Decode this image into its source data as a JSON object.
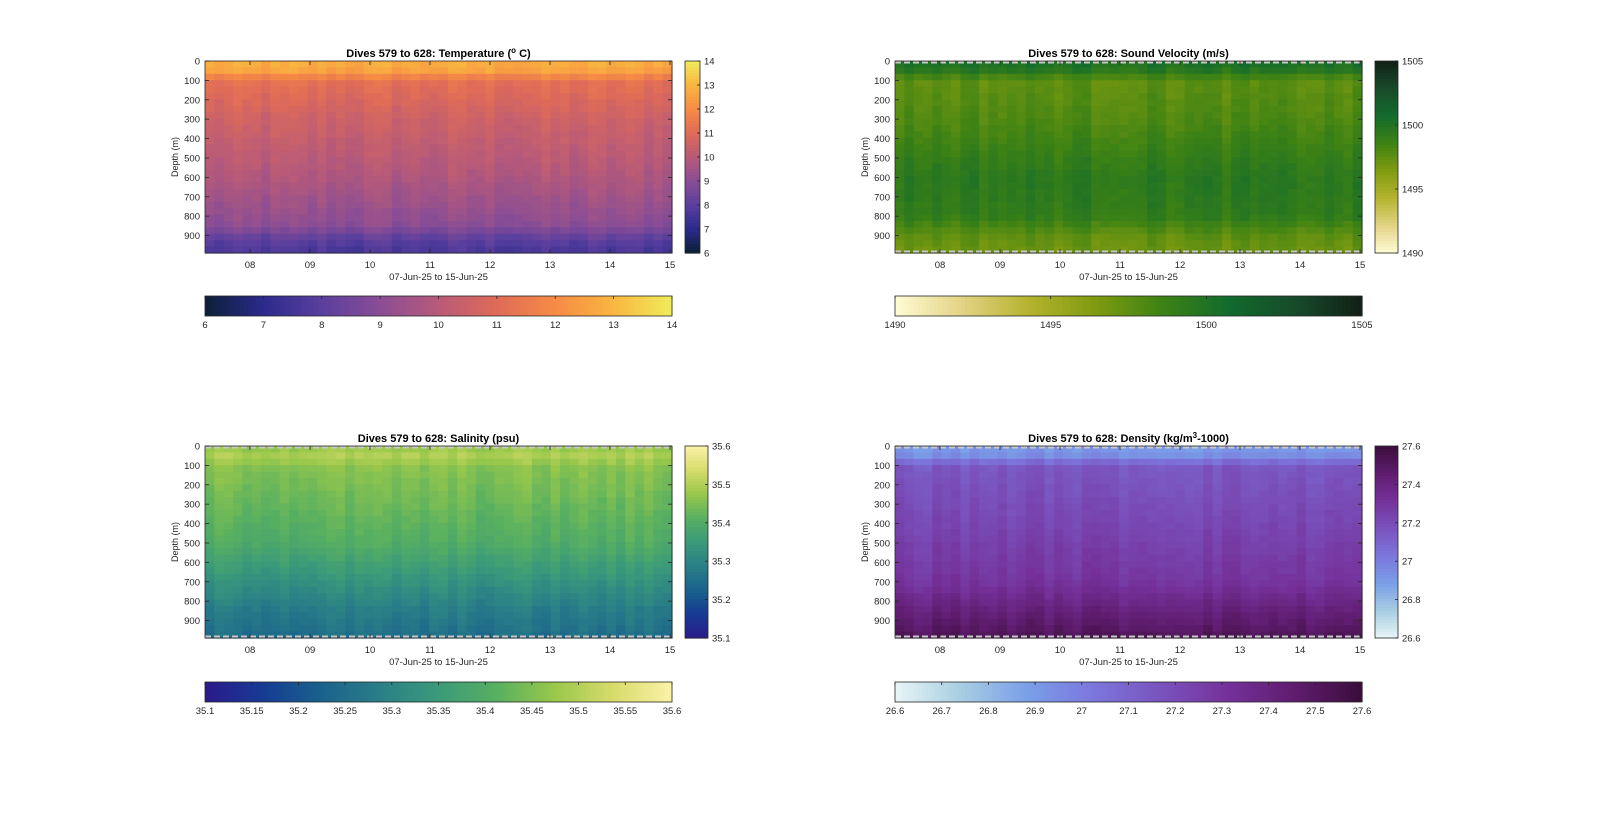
{
  "colormaps": {
    "thermal": [
      "#0b1f35",
      "#2b2a8c",
      "#5a3f9e",
      "#8a4d95",
      "#b85a78",
      "#df6b58",
      "#f68b45",
      "#f9b640",
      "#f0ec5b"
    ],
    "speed": [
      "#fffbd4",
      "#e3d385",
      "#b5b32f",
      "#7f9b10",
      "#3d8214",
      "#126b2d",
      "#174a2a",
      "#122016"
    ],
    "haline": [
      "#2a1a8a",
      "#173b94",
      "#19628c",
      "#2a7f87",
      "#3b9a7a",
      "#58b060",
      "#99c84b",
      "#d8dc6b",
      "#fbf2a8"
    ],
    "dense": [
      "#e8f5f7",
      "#a6cde2",
      "#7a9ee8",
      "#7c76dc",
      "#7a52bd",
      "#75319a",
      "#5f1c6e",
      "#3a0d3b"
    ]
  },
  "chart_data": [
    {
      "type": "heatmap",
      "title_parts": [
        "Dives 579 to 628: Temperature (",
        "o",
        " C)"
      ],
      "xlabel": "07-Jun-25 to 15-Jun-25",
      "ylabel": "Depth (m)",
      "x_ticks": [
        "08",
        "09",
        "10",
        "11",
        "12",
        "13",
        "14",
        "15"
      ],
      "y_ticks": [
        "0",
        "100",
        "200",
        "300",
        "400",
        "500",
        "600",
        "700",
        "800",
        "900"
      ],
      "ylim": [
        0,
        990
      ],
      "colormap": "thermal",
      "clim": [
        6,
        14
      ],
      "side_colorbar_ticks": [
        "6",
        "7",
        "8",
        "9",
        "10",
        "11",
        "12",
        "13",
        "14"
      ],
      "bottom_colorbar_ticks": [
        "6",
        "7",
        "8",
        "9",
        "10",
        "11",
        "12",
        "13",
        "14"
      ],
      "profile": [
        [
          0,
          12.8
        ],
        [
          60,
          12.5
        ],
        [
          100,
          11.2
        ],
        [
          300,
          10.5
        ],
        [
          600,
          9.8
        ],
        [
          850,
          9.0
        ],
        [
          920,
          8.0
        ],
        [
          990,
          7.6
        ]
      ],
      "dashed_edges": false
    },
    {
      "type": "heatmap",
      "title_parts": [
        "Dives 579 to 628: Sound Velocity (m/s)"
      ],
      "xlabel": "07-Jun-25 to 15-Jun-25",
      "ylabel": "Depth (m)",
      "x_ticks": [
        "08",
        "09",
        "10",
        "11",
        "12",
        "13",
        "14",
        "15"
      ],
      "y_ticks": [
        "0",
        "100",
        "200",
        "300",
        "400",
        "500",
        "600",
        "700",
        "800",
        "900"
      ],
      "ylim": [
        0,
        990
      ],
      "colormap": "speed",
      "clim": [
        1490,
        1505
      ],
      "side_colorbar_ticks": [
        "1490",
        "1495",
        "1500",
        "1505"
      ],
      "bottom_colorbar_ticks": [
        "1490",
        "1495",
        "1500",
        "1505"
      ],
      "profile": [
        [
          0,
          1500.3
        ],
        [
          60,
          1499.5
        ],
        [
          100,
          1497.5
        ],
        [
          300,
          1498.0
        ],
        [
          600,
          1499.5
        ],
        [
          800,
          1499.2
        ],
        [
          900,
          1497.5
        ],
        [
          990,
          1497.0
        ]
      ],
      "dashed_edges": true
    },
    {
      "type": "heatmap",
      "title_parts": [
        "Dives 579 to 628: Salinity (psu)"
      ],
      "xlabel": "07-Jun-25 to 15-Jun-25",
      "ylabel": "Depth (m)",
      "x_ticks": [
        "08",
        "09",
        "10",
        "11",
        "12",
        "13",
        "14",
        "15"
      ],
      "y_ticks": [
        "0",
        "100",
        "200",
        "300",
        "400",
        "500",
        "600",
        "700",
        "800",
        "900"
      ],
      "ylim": [
        0,
        990
      ],
      "colormap": "haline",
      "clim": [
        35.1,
        35.6
      ],
      "side_colorbar_ticks": [
        "35.1",
        "35.2",
        "35.3",
        "35.4",
        "35.5",
        "35.6"
      ],
      "bottom_colorbar_ticks": [
        "35.1",
        "35.15",
        "35.2",
        "35.25",
        "35.3",
        "35.35",
        "35.4",
        "35.45",
        "35.5",
        "35.55",
        "35.6"
      ],
      "profile": [
        [
          0,
          35.47
        ],
        [
          60,
          35.5
        ],
        [
          100,
          35.46
        ],
        [
          300,
          35.43
        ],
        [
          500,
          35.4
        ],
        [
          700,
          35.33
        ],
        [
          850,
          35.28
        ],
        [
          990,
          35.25
        ]
      ],
      "dashed_edges": true
    },
    {
      "type": "heatmap",
      "title_parts": [
        "Dives 579 to 628: Density (kg/m",
        "3",
        "-1000)"
      ],
      "xlabel": "07-Jun-25 to 15-Jun-25",
      "ylabel": "Depth (m)",
      "x_ticks": [
        "08",
        "09",
        "10",
        "11",
        "12",
        "13",
        "14",
        "15"
      ],
      "y_ticks": [
        "0",
        "100",
        "200",
        "300",
        "400",
        "500",
        "600",
        "700",
        "800",
        "900"
      ],
      "ylim": [
        0,
        990
      ],
      "colormap": "dense",
      "clim": [
        26.6,
        27.6
      ],
      "side_colorbar_ticks": [
        "26.6",
        "26.8",
        "27",
        "27.2",
        "27.4",
        "27.6"
      ],
      "bottom_colorbar_ticks": [
        "26.6",
        "26.7",
        "26.8",
        "26.9",
        "27",
        "27.1",
        "27.2",
        "27.3",
        "27.4",
        "27.5",
        "27.6"
      ],
      "profile": [
        [
          0,
          26.9
        ],
        [
          60,
          26.95
        ],
        [
          100,
          27.15
        ],
        [
          400,
          27.22
        ],
        [
          700,
          27.3
        ],
        [
          850,
          27.42
        ],
        [
          990,
          27.52
        ]
      ],
      "dashed_edges": true
    }
  ]
}
